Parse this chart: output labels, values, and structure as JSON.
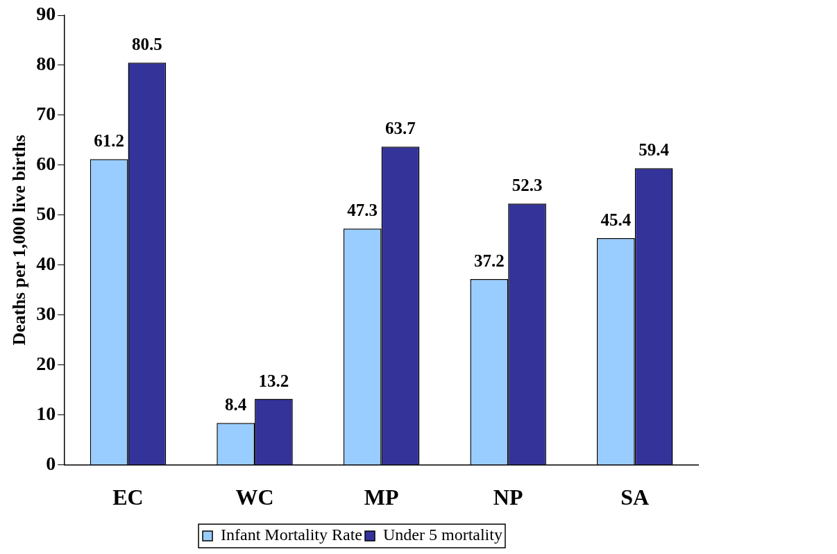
{
  "chart_data": {
    "type": "bar",
    "ylabel": "Deaths per 1,000 live births",
    "categories": [
      "EC",
      "WC",
      "MP",
      "NP",
      "SA"
    ],
    "series": [
      {
        "name": "Infant Mortality Rate",
        "color": "#99ccff",
        "values": [
          61.2,
          8.4,
          47.3,
          37.2,
          45.4
        ]
      },
      {
        "name": "Under 5 mortality",
        "color": "#333399",
        "values": [
          80.5,
          13.2,
          63.7,
          52.3,
          59.4
        ]
      }
    ],
    "ylim": [
      0,
      90
    ],
    "yticks": [
      0,
      10,
      20,
      30,
      40,
      50,
      60,
      70,
      80,
      90
    ],
    "grid": false,
    "legend": "bottom",
    "data_labels": true
  }
}
